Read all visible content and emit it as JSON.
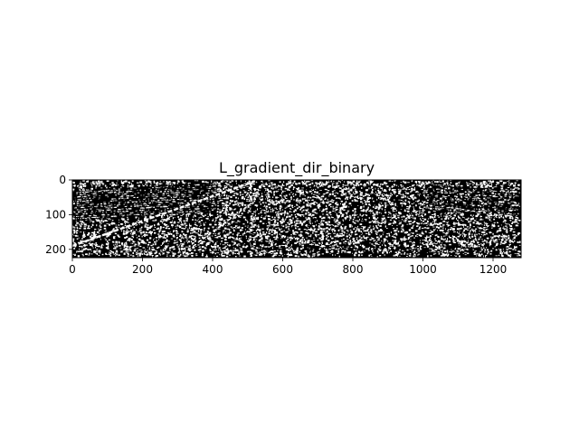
{
  "figure": {
    "title": "L_gradient_dir_binary",
    "image_description": "binary gradient direction map: black background with dense white speckle texture and diagonal white line artifacts",
    "image_size": {
      "width": 1280,
      "height": 224
    },
    "x_ticks": [
      "0",
      "200",
      "400",
      "600",
      "800",
      "1000",
      "1200"
    ],
    "y_ticks": [
      "0",
      "100",
      "200"
    ],
    "colors": {
      "background": "#ffffff",
      "image_black": "#000000",
      "image_white": "#ffffff",
      "axis": "#000000",
      "text": "#000000"
    }
  }
}
